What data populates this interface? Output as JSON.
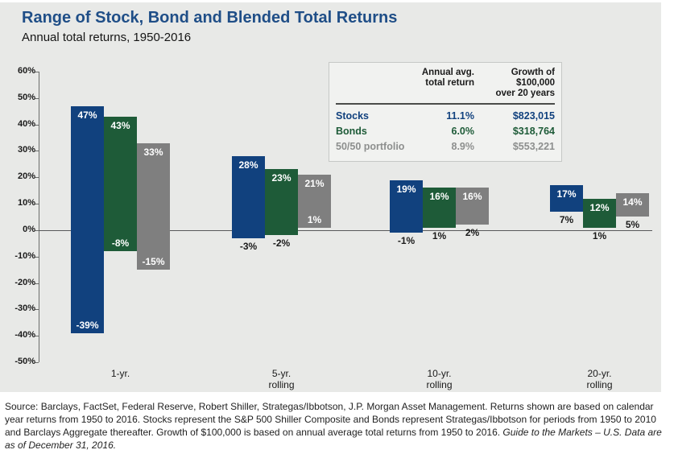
{
  "header": {
    "title": "Range of Stock, Bond and Blended Total Returns",
    "subtitle": "Annual total returns, 1950-2016"
  },
  "summary_table": {
    "headers": [
      {
        "line1": "Annual avg.",
        "line2": "total return"
      },
      {
        "line1": "Growth of $100,000",
        "line2": "over 20 years"
      }
    ],
    "rows": [
      {
        "label": "Stocks",
        "annual_return": "11.1%",
        "growth": "$823,015"
      },
      {
        "label": "Bonds",
        "annual_return": "6.0%",
        "growth": "$318,764"
      },
      {
        "label": "50/50 portfolio",
        "annual_return": "8.9%",
        "growth": "$553,221"
      }
    ]
  },
  "chart_data": {
    "type": "bar",
    "subtype": "floating-range-bars",
    "title": "Range of Stock, Bond and Blended Total Returns",
    "subtitle": "Annual total returns, 1950-2016",
    "categories": [
      "1-yr.",
      "5-yr. rolling",
      "10-yr. rolling",
      "20-yr. rolling"
    ],
    "category_lines": [
      [
        "1-yr."
      ],
      [
        "5-yr.",
        "rolling"
      ],
      [
        "10-yr.",
        "rolling"
      ],
      [
        "20-yr.",
        "rolling"
      ]
    ],
    "series": [
      {
        "name": "Stocks",
        "color": "#11417e",
        "min": [
          -39,
          -3,
          -1,
          7
        ],
        "max": [
          47,
          28,
          19,
          17
        ]
      },
      {
        "name": "Bonds",
        "color": "#1e5b38",
        "min": [
          -8,
          -2,
          1,
          1
        ],
        "max": [
          43,
          23,
          16,
          12
        ]
      },
      {
        "name": "50/50 portfolio",
        "color": "#7f7f7f",
        "min": [
          -15,
          1,
          2,
          5
        ],
        "max": [
          33,
          21,
          16,
          14
        ]
      }
    ],
    "min_label_placement": [
      [
        "inside",
        "below",
        "below",
        "below"
      ],
      [
        "inside",
        "below",
        "below",
        "below"
      ],
      [
        "inside",
        "inside",
        "below",
        "below"
      ]
    ],
    "ylim": [
      -50,
      60
    ],
    "ytick_step": 10,
    "ytick_labels": [
      "60%",
      "50%",
      "40%",
      "30%",
      "20%",
      "10%",
      "0%",
      "-10%",
      "-20%",
      "-30%",
      "-40%",
      "-50%"
    ],
    "grid": false,
    "legend_position": "none"
  },
  "footer": {
    "source_text": "Source: Barclays, FactSet, Federal Reserve, Robert Shiller, Strategas/Ibbotson, J.P. Morgan Asset Management. Returns shown are based on calendar year returns from 1950 to 2016. Stocks represent the S&P 500 Shiller Composite and Bonds represent Strategas/Ibbotson for periods from 1950 to 2010 and Barclays Aggregate thereafter. Growth of $100,000 is based on annual average total returns from 1950 to 2016. ",
    "source_italic": "Guide to the Markets – U.S. Data are as of December 31, 2016."
  },
  "colors": {
    "panel_bg": "#e8e9e7",
    "title_blue": "#1f4e87",
    "stocks_blue": "#11417e",
    "bonds_green": "#1e5b38",
    "blend_gray": "#7f7f7f",
    "axis_line": "#6b6d6b",
    "zero_line": "#58595b",
    "table_bg": "#f1f2f0"
  }
}
